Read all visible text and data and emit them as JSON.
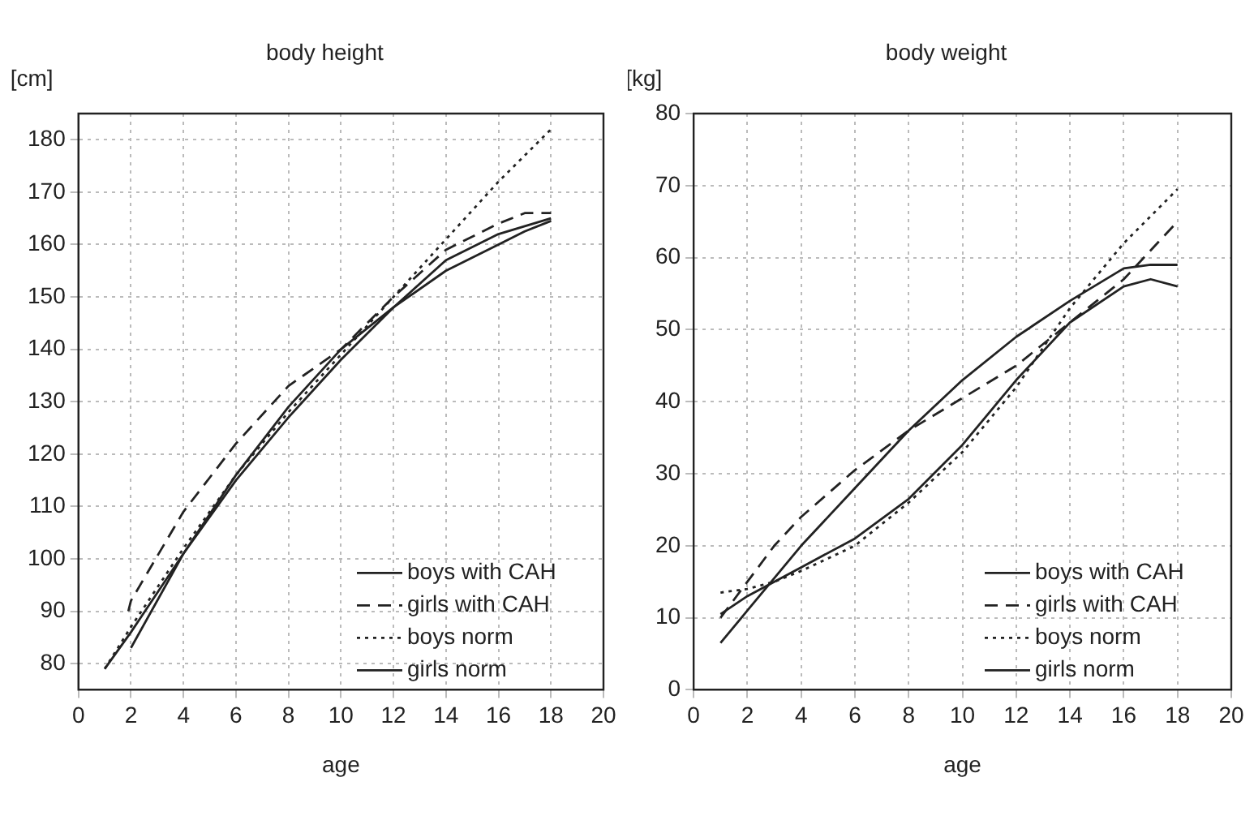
{
  "chart_data": [
    {
      "type": "line",
      "title": "body height",
      "xlabel": "age",
      "ylabel": "[cm]",
      "xlim": [
        0,
        20
      ],
      "xticks": [
        0,
        2,
        4,
        6,
        8,
        10,
        12,
        14,
        16,
        18,
        20
      ],
      "ylim": [
        75,
        185
      ],
      "yticks": [
        80,
        90,
        100,
        110,
        120,
        130,
        140,
        150,
        160,
        170,
        180
      ],
      "grid": true,
      "legend": "bottom right",
      "marker": "none",
      "series": [
        {
          "name": "boys with CAH",
          "color": "#222222",
          "line_style": "solid",
          "x": [
            2,
            4,
            6,
            8,
            10,
            12,
            14,
            16,
            17,
            18
          ],
          "values": [
            83,
            101,
            116,
            129,
            140,
            148,
            155,
            160,
            162.5,
            164.5
          ]
        },
        {
          "name": "girls with CAH",
          "color": "#222222",
          "line_style": "dashed",
          "x": [
            1.9,
            2,
            4,
            6,
            8,
            10,
            12,
            14,
            16,
            17,
            18
          ],
          "values": [
            90,
            92,
            109,
            122,
            133,
            140,
            150,
            159,
            164,
            166,
            166
          ]
        },
        {
          "name": "boys norm",
          "color": "#222222",
          "line_style": "dotted",
          "x": [
            1,
            2,
            4,
            6,
            8,
            10,
            12,
            14,
            16,
            18
          ],
          "values": [
            79,
            87,
            102,
            116,
            128,
            139,
            150,
            161,
            172,
            182
          ]
        },
        {
          "name": "girls norm",
          "color": "#222222",
          "line_style": "solid",
          "x": [
            1,
            2,
            4,
            6,
            8,
            10,
            12,
            14,
            16,
            18
          ],
          "values": [
            79,
            86,
            101,
            115,
            127,
            138,
            148,
            157,
            162,
            165
          ]
        }
      ]
    },
    {
      "type": "line",
      "title": "body weight",
      "xlabel": "age",
      "ylabel": "[kg]",
      "xlim": [
        0,
        20
      ],
      "xticks": [
        0,
        2,
        4,
        6,
        8,
        10,
        12,
        14,
        16,
        18,
        20
      ],
      "ylim": [
        0,
        80
      ],
      "yticks": [
        0,
        10,
        20,
        30,
        40,
        50,
        60,
        70,
        80
      ],
      "grid": true,
      "legend": "bottom right",
      "marker": "none",
      "series": [
        {
          "name": "boys with CAH",
          "color": "#222222",
          "line_style": "solid",
          "x": [
            1,
            2,
            4,
            6,
            8,
            10,
            12,
            14,
            16,
            17,
            18
          ],
          "values": [
            6.5,
            11,
            20,
            28,
            36,
            43,
            49,
            54,
            58.5,
            59,
            59
          ]
        },
        {
          "name": "girls with CAH",
          "color": "#222222",
          "line_style": "dashed",
          "x": [
            1,
            2,
            3,
            4,
            6,
            8,
            10,
            12,
            14,
            16,
            18
          ],
          "values": [
            10,
            15,
            20,
            24,
            30.5,
            36,
            40.5,
            45,
            51,
            57,
            65
          ]
        },
        {
          "name": "boys norm",
          "color": "#222222",
          "line_style": "dotted",
          "x": [
            1,
            2,
            3,
            4,
            6,
            8,
            10,
            12,
            14,
            16,
            18
          ],
          "values": [
            13.5,
            14,
            15,
            16.5,
            20,
            26,
            33,
            42,
            53,
            62,
            69.5
          ]
        },
        {
          "name": "girls norm",
          "color": "#222222",
          "line_style": "solid",
          "x": [
            1,
            2,
            3,
            4,
            6,
            8,
            10,
            12,
            14,
            16,
            17,
            18
          ],
          "values": [
            10.5,
            13,
            15,
            17,
            21,
            26.5,
            34,
            43,
            51,
            56,
            57,
            56
          ]
        }
      ]
    }
  ]
}
